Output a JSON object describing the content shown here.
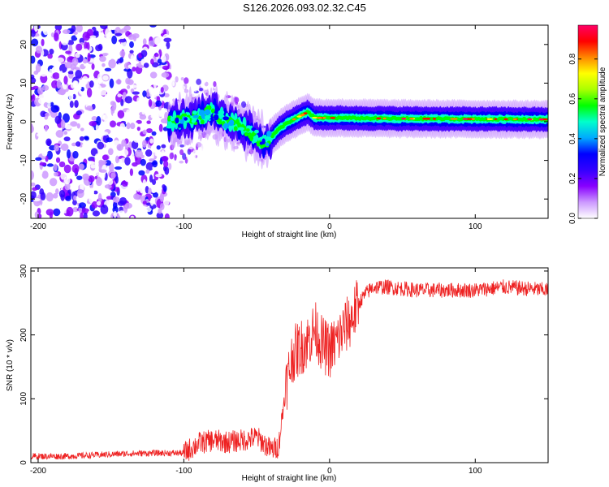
{
  "title": "S126.2026.093.02.32.C45",
  "chart_data": [
    {
      "type": "heatmap",
      "name": "spectrogram",
      "xlabel": "Height of straight line (km)",
      "ylabel": "Frequency (Hz)",
      "xlim": [
        -205,
        150
      ],
      "ylim": [
        -25,
        25
      ],
      "xticks": [
        -200,
        -100,
        0,
        100
      ],
      "xtick_labels": [
        "-200",
        "-100",
        "0",
        "100"
      ],
      "yticks": [
        20,
        10,
        0,
        -10,
        -20
      ],
      "ytick_labels": [
        "20",
        "10",
        "0",
        "-10",
        "-20"
      ],
      "colorbar": {
        "label": "Normalized spectral amplitude",
        "range": [
          0.0,
          0.97
        ],
        "ticks": [
          0.0,
          0.2,
          0.4,
          0.6,
          0.8
        ],
        "tick_labels": [
          "0.0",
          "0.2",
          "0.4",
          "0.6",
          "0.8"
        ],
        "colors": [
          "#ffffff",
          "#cc99ff",
          "#8800ff",
          "#3300ff",
          "#0000ff",
          "#00aaff",
          "#00ffcc",
          "#00ff00",
          "#aaff00",
          "#ffff00",
          "#ff8800",
          "#ff0000",
          "#ff0066"
        ]
      },
      "band_center": [
        [
          -110,
          0
        ],
        [
          -100,
          0.5
        ],
        [
          -90,
          1
        ],
        [
          -80,
          2.5
        ],
        [
          -70,
          0
        ],
        [
          -60,
          -1
        ],
        [
          -50,
          -4
        ],
        [
          -45,
          -6
        ],
        [
          -40,
          -4
        ],
        [
          -35,
          -2
        ],
        [
          -30,
          -0.5
        ],
        [
          -25,
          0.5
        ],
        [
          -20,
          1.5
        ],
        [
          -15,
          2.5
        ],
        [
          -10,
          1
        ],
        [
          -5,
          1
        ],
        [
          0,
          1
        ],
        [
          50,
          0.8
        ],
        [
          100,
          0.7
        ],
        [
          150,
          0.6
        ]
      ],
      "noise_region": [
        -205,
        -110
      ]
    },
    {
      "type": "line",
      "name": "snr",
      "xlabel": "Height of straight line (km)",
      "ylabel": "SNR (10 * v/v)",
      "xlim": [
        -205,
        150
      ],
      "ylim": [
        0,
        305
      ],
      "xticks": [
        -200,
        -100,
        0,
        100
      ],
      "xtick_labels": [
        "-200",
        "-100",
        "0",
        "100"
      ],
      "yticks": [
        0,
        100,
        200,
        300
      ],
      "ytick_labels": [
        "0",
        "100",
        "200",
        "300"
      ],
      "color": "#ee2222",
      "series": [
        {
          "name": "SNR",
          "x": [
            -205,
            -180,
            -160,
            -140,
            -120,
            -100,
            -90,
            -80,
            -70,
            -60,
            -50,
            -40,
            -35,
            -30,
            -25,
            -20,
            -15,
            -10,
            -5,
            0,
            5,
            10,
            15,
            20,
            25,
            30,
            40,
            60,
            80,
            100,
            120,
            150
          ],
          "y": [
            10,
            10,
            12,
            14,
            15,
            15,
            30,
            35,
            32,
            35,
            40,
            20,
            25,
            120,
            170,
            180,
            190,
            210,
            185,
            175,
            190,
            210,
            225,
            250,
            265,
            275,
            275,
            270,
            270,
            270,
            275,
            270
          ]
        }
      ]
    }
  ]
}
